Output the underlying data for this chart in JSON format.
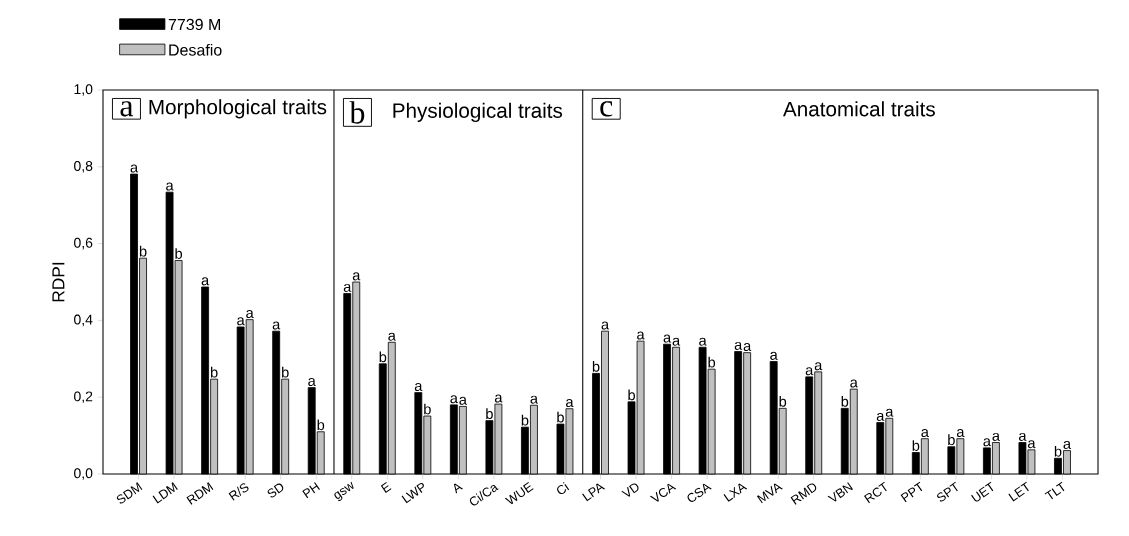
{
  "chart_data": {
    "type": "bar",
    "ylabel": "RDPI",
    "categories": [
      "SDM",
      "LDM",
      "RDM",
      "R/S",
      "SD",
      "PH",
      "gsw",
      "E",
      "LWP",
      "A",
      "Ci/Ca",
      "WUE",
      "Ci",
      "LPA",
      "VD",
      "VCA",
      "CSA",
      "LXA",
      "MVA",
      "RMD",
      "VBN",
      "RCT",
      "PPT",
      "SPT",
      "UET",
      "LET",
      "TLT"
    ],
    "series": [
      {
        "name": "7739 M",
        "color": "#000000",
        "values": [
          0.781,
          0.734,
          0.487,
          0.383,
          0.372,
          0.225,
          0.47,
          0.287,
          0.212,
          0.18,
          0.139,
          0.122,
          0.13,
          0.262,
          0.188,
          0.338,
          0.33,
          0.319,
          0.293,
          0.253,
          0.171,
          0.134,
          0.056,
          0.071,
          0.068,
          0.082,
          0.041
        ],
        "value_labels": [
          "a",
          "a",
          "a",
          "a",
          "a",
          "a",
          "a",
          "b",
          "a",
          "a",
          "b",
          "b",
          "b",
          "b",
          "b",
          "a",
          "a",
          "a",
          "a",
          "a",
          "b",
          "a",
          "b",
          "b",
          "a",
          "a",
          "b"
        ]
      },
      {
        "name": "Desafio",
        "color": "#c0c0c0",
        "values": [
          0.562,
          0.556,
          0.247,
          0.402,
          0.247,
          0.11,
          0.5,
          0.343,
          0.151,
          0.176,
          0.182,
          0.179,
          0.17,
          0.372,
          0.346,
          0.33,
          0.273,
          0.316,
          0.171,
          0.266,
          0.221,
          0.145,
          0.092,
          0.092,
          0.082,
          0.063,
          0.061
        ],
        "value_labels": [
          "b",
          "b",
          "b",
          "a",
          "b",
          "b",
          "a",
          "a",
          "b",
          "a",
          "a",
          "a",
          "a",
          "a",
          "a",
          "a",
          "b",
          "a",
          "b",
          "a",
          "a",
          "a",
          "a",
          "a",
          "a",
          "a",
          "a"
        ]
      }
    ],
    "ylim": [
      0,
      1
    ],
    "yticks": [
      {
        "value": 0,
        "label": "0,0"
      },
      {
        "value": 0.2,
        "label": "0,2"
      },
      {
        "value": 0.4,
        "label": "0,4"
      },
      {
        "value": 0.6,
        "label": "0,6"
      },
      {
        "value": 0.8,
        "label": "0,8"
      },
      {
        "value": 1.0,
        "label": "1,0"
      }
    ],
    "annotations": [
      "a",
      "Morphological traits",
      "b",
      "Physiological traits",
      "c",
      "Anatomical traits"
    ],
    "legend": "top left",
    "grid": false
  }
}
